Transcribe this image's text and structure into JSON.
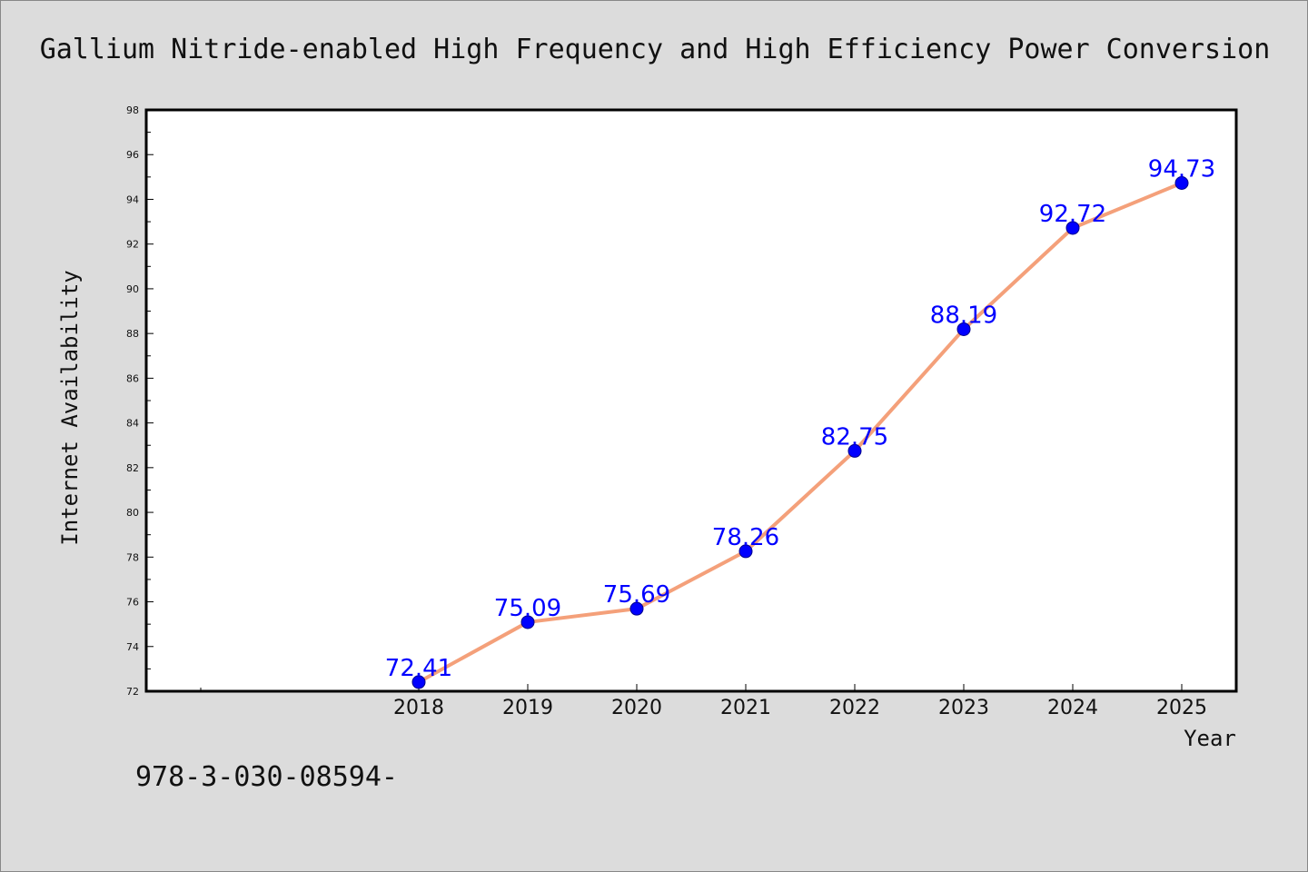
{
  "chart_data": {
    "type": "line",
    "title": "Gallium Nitride-enabled High Frequency and High Efficiency Power Conversion",
    "xlabel": "Year",
    "ylabel": "Internet Availability",
    "categories": [
      "2018",
      "2019",
      "2020",
      "2021",
      "2022",
      "2023",
      "2024",
      "2025"
    ],
    "series": [
      {
        "values": [
          72.41,
          75.09,
          75.69,
          78.26,
          82.75,
          88.19,
          92.72,
          94.73
        ],
        "color": "#f4a07a",
        "marker_color": "#0000ff"
      }
    ],
    "data_labels": [
      "72.41",
      "75.09",
      "75.69",
      "78.26",
      "82.75",
      "88.19",
      "92.72",
      "94.73"
    ],
    "ylim": [
      72,
      98
    ],
    "yticks": [
      "72",
      "74",
      "76",
      "78",
      "80",
      "82",
      "84",
      "86",
      "88",
      "90",
      "92",
      "94",
      "96",
      "98"
    ],
    "grid": false,
    "legend": "none"
  },
  "footnote": "978-3-030-08594-"
}
